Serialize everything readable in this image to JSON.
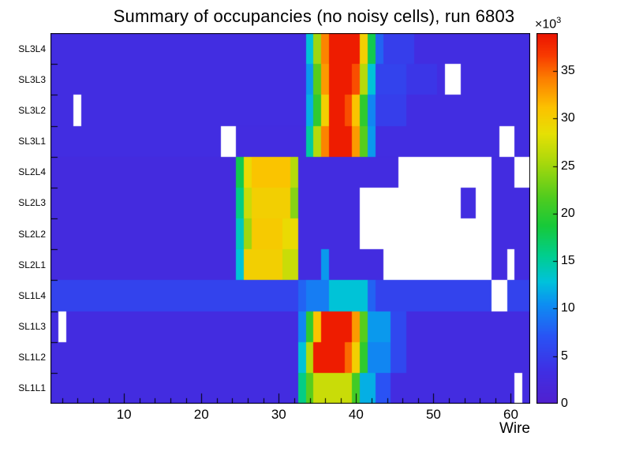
{
  "chart_data": {
    "type": "heatmap",
    "title": "Summary of occupancies (no noisy cells), run 6803",
    "xlabel": "Wire",
    "x_range": [
      1,
      62
    ],
    "x_ticks": [
      10,
      20,
      30,
      40,
      50,
      60
    ],
    "rows_top_to_bottom": [
      "SL3L4",
      "SL3L3",
      "SL3L2",
      "SL3L1",
      "SL2L4",
      "SL2L3",
      "SL2L2",
      "SL2L1",
      "SL1L4",
      "SL1L3",
      "SL1L2",
      "SL1L1"
    ],
    "z_min": 0,
    "z_max": 39000,
    "z_ticks": [
      0,
      5,
      10,
      15,
      20,
      25,
      30,
      35
    ],
    "z_tick_scale": 1000,
    "z_unit_base": "×10",
    "z_unit_exponent": "3",
    "legend_position": "right-colorbar",
    "empty_cell_color": "#ffffff",
    "frame_color": "#000000",
    "palette_stops": [
      [
        0.0,
        "#5120CE"
      ],
      [
        0.09,
        "#3F2FE4"
      ],
      [
        0.18,
        "#2A52F4"
      ],
      [
        0.27,
        "#0D8FF2"
      ],
      [
        0.33,
        "#00C2DB"
      ],
      [
        0.4,
        "#00CE8F"
      ],
      [
        0.48,
        "#17C93A"
      ],
      [
        0.56,
        "#52CC1E"
      ],
      [
        0.65,
        "#A8D80C"
      ],
      [
        0.73,
        "#E6E004"
      ],
      [
        0.8,
        "#FCC200"
      ],
      [
        0.88,
        "#FC7D00"
      ],
      [
        0.94,
        "#F83B00"
      ],
      [
        1.0,
        "#EB1300"
      ]
    ],
    "cells_by_row_segments_note": "segments are [firstWire, lastWire, counts]; null counts = empty (white) cells",
    "cells_by_row": {
      "SL3L4": [
        [
          1,
          33,
          3000
        ],
        [
          34,
          34,
          13000
        ],
        [
          35,
          35,
          25000
        ],
        [
          36,
          36,
          34000
        ],
        [
          37,
          40,
          38500
        ],
        [
          41,
          41,
          30000
        ],
        [
          42,
          42,
          18000
        ],
        [
          43,
          43,
          8000
        ],
        [
          44,
          47,
          5000
        ],
        [
          48,
          62,
          3000
        ]
      ],
      "SL3L3": [
        [
          1,
          33,
          3000
        ],
        [
          34,
          34,
          11000
        ],
        [
          35,
          35,
          22000
        ],
        [
          36,
          36,
          33000
        ],
        [
          37,
          39,
          38500
        ],
        [
          40,
          40,
          36000
        ],
        [
          41,
          41,
          26000
        ],
        [
          42,
          42,
          13000
        ],
        [
          43,
          46,
          5500
        ],
        [
          47,
          50,
          4200
        ],
        [
          51,
          51,
          3000
        ],
        [
          52,
          53,
          null
        ],
        [
          54,
          62,
          3000
        ]
      ],
      "SL3L2": [
        [
          1,
          3,
          3000
        ],
        [
          4,
          4,
          null
        ],
        [
          5,
          33,
          3000
        ],
        [
          34,
          34,
          12000
        ],
        [
          35,
          35,
          20000
        ],
        [
          36,
          36,
          30000
        ],
        [
          37,
          38,
          38500
        ],
        [
          39,
          39,
          36000
        ],
        [
          40,
          40,
          31000
        ],
        [
          41,
          41,
          20000
        ],
        [
          42,
          42,
          10000
        ],
        [
          43,
          46,
          5000
        ],
        [
          47,
          62,
          3000
        ]
      ],
      "SL3L1": [
        [
          1,
          22,
          3000
        ],
        [
          23,
          24,
          null
        ],
        [
          25,
          33,
          2800
        ],
        [
          34,
          34,
          15000
        ],
        [
          35,
          35,
          26000
        ],
        [
          36,
          36,
          34000
        ],
        [
          37,
          39,
          38500
        ],
        [
          40,
          40,
          33000
        ],
        [
          41,
          41,
          22000
        ],
        [
          42,
          42,
          11000
        ],
        [
          43,
          58,
          3000
        ],
        [
          59,
          60,
          null
        ],
        [
          61,
          62,
          3000
        ]
      ],
      "SL2L4": [
        [
          1,
          24,
          2500
        ],
        [
          25,
          25,
          18000
        ],
        [
          26,
          26,
          29000
        ],
        [
          27,
          31,
          31000
        ],
        [
          32,
          32,
          26000
        ],
        [
          33,
          45,
          2800
        ],
        [
          46,
          57,
          null
        ],
        [
          58,
          60,
          2800
        ],
        [
          61,
          62,
          null
        ]
      ],
      "SL2L3": [
        [
          1,
          24,
          2500
        ],
        [
          25,
          25,
          16000
        ],
        [
          26,
          26,
          27000
        ],
        [
          27,
          31,
          30000
        ],
        [
          32,
          32,
          24000
        ],
        [
          33,
          40,
          2800
        ],
        [
          41,
          53,
          null
        ],
        [
          54,
          55,
          3000
        ],
        [
          56,
          57,
          null
        ],
        [
          58,
          62,
          2800
        ]
      ],
      "SL2L2": [
        [
          1,
          24,
          2500
        ],
        [
          25,
          25,
          14000
        ],
        [
          26,
          26,
          25000
        ],
        [
          27,
          30,
          30500
        ],
        [
          31,
          32,
          29000
        ],
        [
          33,
          40,
          2800
        ],
        [
          41,
          57,
          null
        ],
        [
          58,
          62,
          2800
        ]
      ],
      "SL2L1": [
        [
          1,
          24,
          2500
        ],
        [
          25,
          25,
          13000
        ],
        [
          26,
          30,
          30000
        ],
        [
          31,
          32,
          27000
        ],
        [
          33,
          35,
          2800
        ],
        [
          36,
          36,
          11000
        ],
        [
          37,
          43,
          2800
        ],
        [
          44,
          57,
          null
        ],
        [
          58,
          59,
          2800
        ],
        [
          60,
          60,
          null
        ],
        [
          61,
          62,
          2800
        ]
      ],
      "SL1L4": [
        [
          1,
          32,
          5500
        ],
        [
          33,
          33,
          8000
        ],
        [
          34,
          36,
          9500
        ],
        [
          37,
          41,
          13000
        ],
        [
          42,
          42,
          8000
        ],
        [
          43,
          57,
          5500
        ],
        [
          58,
          59,
          null
        ],
        [
          60,
          62,
          5500
        ]
      ],
      "SL1L3": [
        [
          1,
          1,
          2800
        ],
        [
          2,
          2,
          null
        ],
        [
          3,
          32,
          2800
        ],
        [
          33,
          33,
          10000
        ],
        [
          34,
          34,
          20000
        ],
        [
          35,
          35,
          31000
        ],
        [
          36,
          39,
          38500
        ],
        [
          40,
          40,
          33000
        ],
        [
          41,
          41,
          22000
        ],
        [
          42,
          44,
          11000
        ],
        [
          45,
          46,
          6000
        ],
        [
          47,
          62,
          2800
        ]
      ],
      "SL1L2": [
        [
          1,
          32,
          2800
        ],
        [
          33,
          33,
          13000
        ],
        [
          34,
          34,
          26000
        ],
        [
          35,
          38,
          38500
        ],
        [
          39,
          39,
          35000
        ],
        [
          40,
          40,
          30000
        ],
        [
          41,
          41,
          20000
        ],
        [
          42,
          44,
          10000
        ],
        [
          45,
          46,
          6000
        ],
        [
          47,
          62,
          2800
        ]
      ],
      "SL1L1": [
        [
          1,
          32,
          2800
        ],
        [
          33,
          33,
          16000
        ],
        [
          34,
          34,
          22000
        ],
        [
          35,
          39,
          27000
        ],
        [
          40,
          40,
          21000
        ],
        [
          41,
          42,
          12000
        ],
        [
          43,
          44,
          7000
        ],
        [
          45,
          60,
          2800
        ],
        [
          61,
          61,
          null
        ],
        [
          62,
          62,
          2800
        ]
      ]
    }
  },
  "layout_text": {
    "note": "all visible strings come from chart_data"
  }
}
